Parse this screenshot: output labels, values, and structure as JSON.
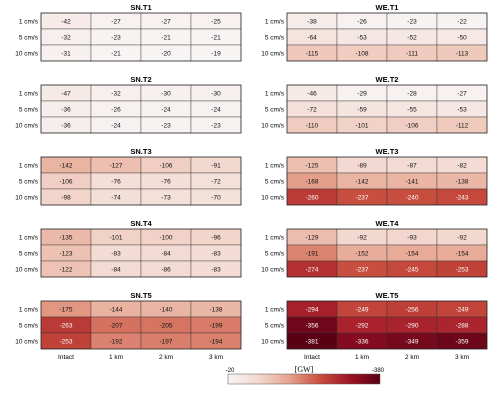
{
  "chart_data": {
    "type": "heatmap",
    "colorbar": {
      "label": "[GW]",
      "ticks": [
        "-20",
        "-380"
      ],
      "range": [
        -20,
        -380
      ],
      "colors": [
        "#f7f4f4",
        "#f3d8cf",
        "#e6a48f",
        "#c9503f",
        "#9e1427",
        "#5a0014"
      ]
    },
    "row_labels": [
      "1 cm/s",
      "5 cm/s",
      "10 cm/s"
    ],
    "col_labels": [
      "Intact",
      "1 km",
      "2 km",
      "3 km"
    ],
    "panels": [
      {
        "title": "SN.T1",
        "values": [
          [
            -42,
            -27,
            -27,
            -25
          ],
          [
            -32,
            -23,
            -21,
            -21
          ],
          [
            -31,
            -21,
            -20,
            -19
          ]
        ]
      },
      {
        "title": "WE.T1",
        "values": [
          [
            -38,
            -26,
            -23,
            -22
          ],
          [
            -64,
            -53,
            -52,
            -50
          ],
          [
            -115,
            -108,
            -111,
            -113
          ]
        ]
      },
      {
        "title": "SN.T2",
        "values": [
          [
            -47,
            -32,
            -30,
            -30
          ],
          [
            -36,
            -26,
            -24,
            -24
          ],
          [
            -36,
            -24,
            -23,
            -23
          ]
        ]
      },
      {
        "title": "WE.T2",
        "values": [
          [
            -46,
            -29,
            -28,
            -27
          ],
          [
            -72,
            -59,
            -55,
            -53
          ],
          [
            -110,
            -101,
            -106,
            -112
          ]
        ]
      },
      {
        "title": "SN.T3",
        "values": [
          [
            -142,
            -127,
            -106,
            -91
          ],
          [
            -106,
            -76,
            -76,
            -72
          ],
          [
            -98,
            -74,
            -73,
            -70
          ]
        ]
      },
      {
        "title": "WE.T3",
        "values": [
          [
            -125,
            -89,
            -87,
            -82
          ],
          [
            -168,
            -142,
            -141,
            -138
          ],
          [
            -260,
            -237,
            -240,
            -243
          ]
        ]
      },
      {
        "title": "SN.T4",
        "values": [
          [
            -135,
            -101,
            -100,
            -96
          ],
          [
            -123,
            -83,
            -84,
            -83
          ],
          [
            -122,
            -84,
            -86,
            -83
          ]
        ]
      },
      {
        "title": "WE.T4",
        "values": [
          [
            -129,
            -92,
            -93,
            -92
          ],
          [
            -191,
            -152,
            -154,
            -154
          ],
          [
            -274,
            -237,
            -245,
            -253
          ]
        ]
      },
      {
        "title": "SN.T5",
        "values": [
          [
            -175,
            -144,
            -140,
            -138
          ],
          [
            -263,
            -207,
            -205,
            -199
          ],
          [
            -253,
            -192,
            -197,
            -194
          ]
        ]
      },
      {
        "title": "WE.T5",
        "values": [
          [
            -294,
            -249,
            -256,
            -249
          ],
          [
            -356,
            -292,
            -290,
            -288
          ],
          [
            -381,
            -336,
            -349,
            -359
          ]
        ]
      }
    ]
  }
}
